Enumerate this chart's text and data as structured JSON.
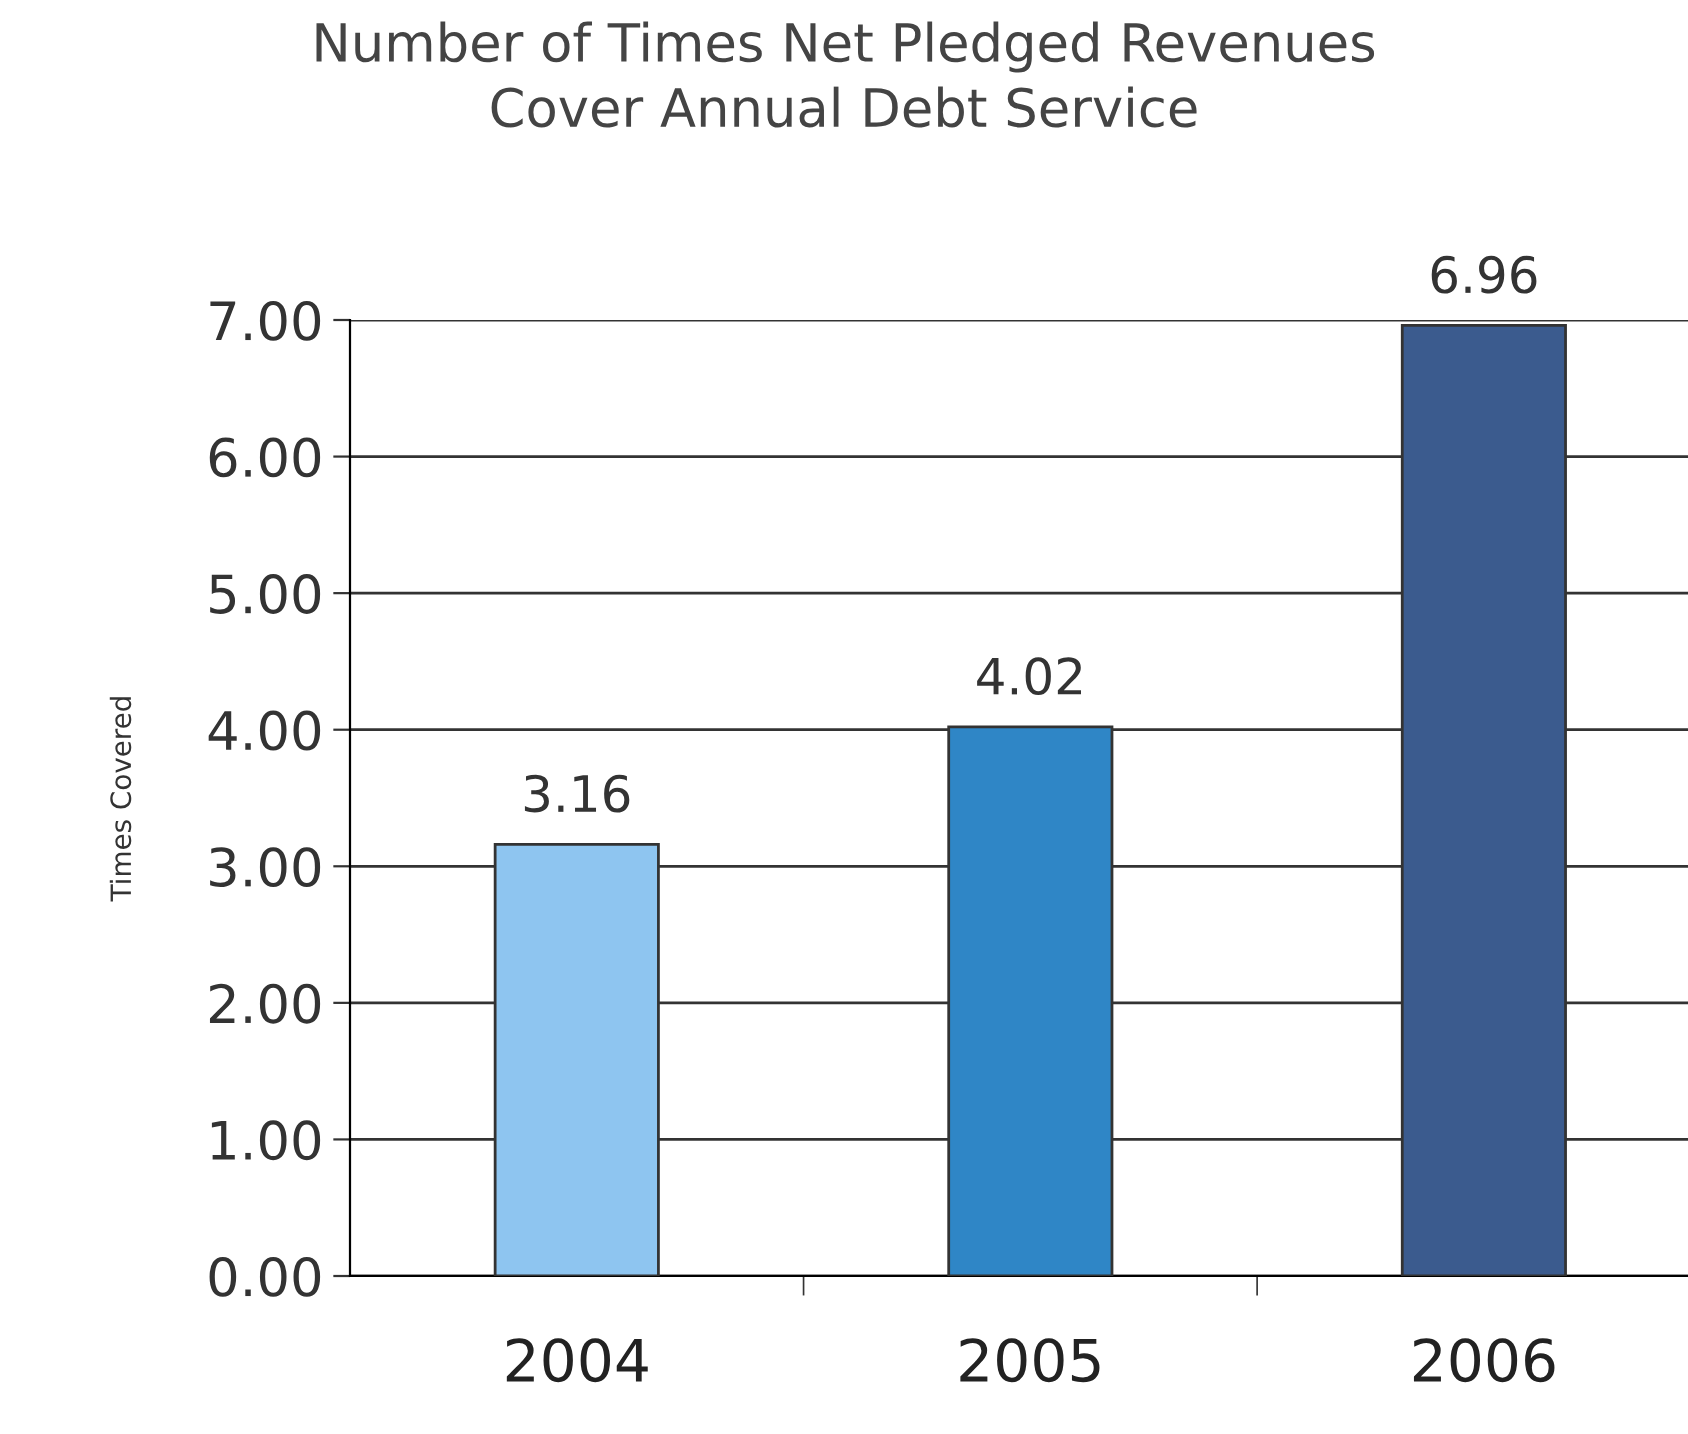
{
  "chart_data": {
    "type": "bar",
    "title": "Number of Times Net Pledged Revenues\nCover Annual Debt Service",
    "ylabel": "Times Covered",
    "categories": [
      "2004",
      "2005",
      "2006"
    ],
    "values": [
      3.16,
      4.02,
      6.96
    ],
    "colors": [
      "#8ec5f0",
      "#2f86c6",
      "#3b5b8e"
    ],
    "ylim": [
      0,
      7
    ],
    "yticks": [
      {
        "value": 0,
        "label": "0.00"
      },
      {
        "value": 1,
        "label": "1.00"
      },
      {
        "value": 2,
        "label": "2.00"
      },
      {
        "value": 3,
        "label": "3.00"
      },
      {
        "value": 4,
        "label": "4.00"
      },
      {
        "value": 5,
        "label": "5.00"
      },
      {
        "value": 6,
        "label": "6.00"
      },
      {
        "value": 7,
        "label": "7.00"
      }
    ],
    "grid": "y",
    "data_labels": true
  }
}
